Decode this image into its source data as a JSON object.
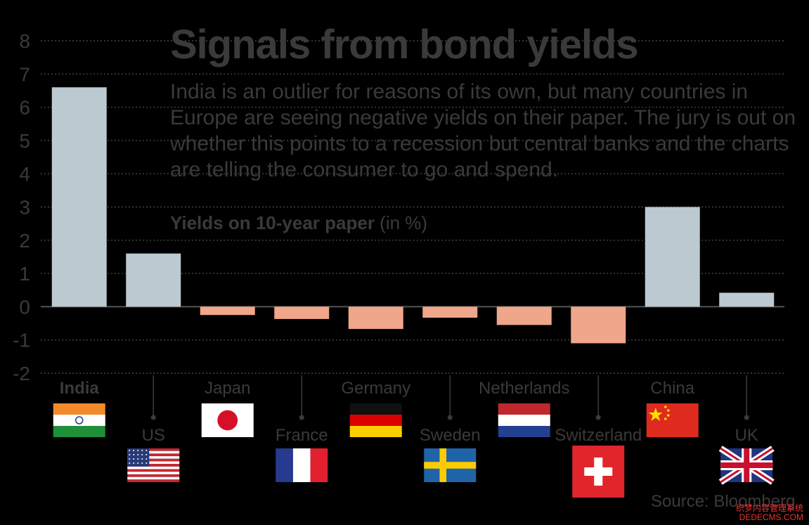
{
  "title": "Signals from bond yields",
  "subtitle": "India is an outlier for reasons of its own, but many countries in Europe are seeing negative yields on their paper. The jury is out on whether this points to a recession but central banks and the charts are telling the consumer to go and spend.",
  "caption_bold": "Yields on 10-year paper",
  "caption_rest": " (in %)",
  "source": "Source: Bloomberg",
  "watermark_line1": "织梦内容管理系统",
  "watermark_line2": "DEDECMS.COM",
  "colors": {
    "positive": "#bcc9d0",
    "negative": "#f0a68a",
    "axis_text": "#3a3a3a",
    "grid": "#444444",
    "zero_line": "#555555"
  },
  "chart_data": {
    "type": "bar",
    "categories": [
      "India",
      "US",
      "Japan",
      "France",
      "Germany",
      "Sweden",
      "Netherlands",
      "Switzerland",
      "China",
      "UK"
    ],
    "values": [
      6.6,
      1.6,
      -0.25,
      -0.37,
      -0.67,
      -0.33,
      -0.55,
      -1.1,
      3.0,
      0.42
    ],
    "title": "Signals from bond yields",
    "ylabel": "Yields on 10-year paper (in %)",
    "ylim": [
      -2,
      8
    ],
    "yticks": [
      8,
      7,
      6,
      5,
      4,
      3,
      2,
      1,
      0,
      -1,
      -2
    ],
    "grid": true,
    "flags": [
      "india-flag-icon",
      "us-flag-icon",
      "japan-flag-icon",
      "france-flag-icon",
      "germany-flag-icon",
      "sweden-flag-icon",
      "netherlands-flag-icon",
      "switzerland-flag-icon",
      "china-flag-icon",
      "uk-flag-icon"
    ]
  }
}
